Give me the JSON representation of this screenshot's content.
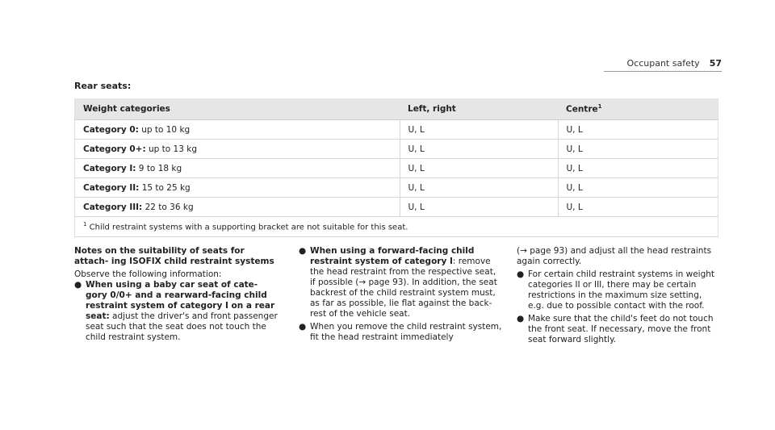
{
  "header": {
    "section": "Occupant safety",
    "page": "57"
  },
  "title": "Rear seats:",
  "table": {
    "headers": [
      "Weight categories",
      "Left, right",
      "Centre"
    ],
    "centre_sup": "1",
    "rows": [
      {
        "category": "Category 0:",
        "weight": "up to 10 kg",
        "left_right": "U, L",
        "centre": "U, L"
      },
      {
        "category": "Category 0+:",
        "weight": "up to 13 kg",
        "left_right": "U, L",
        "centre": "U, L"
      },
      {
        "category": "Category I:",
        "weight": "9 to 18 kg",
        "left_right": "U, L",
        "centre": "U, L"
      },
      {
        "category": "Category II:",
        "weight": "15 to 25 kg",
        "left_right": "U, L",
        "centre": "U, L"
      },
      {
        "category": "Category III:",
        "weight": "22 to 36 kg",
        "left_right": "U, L",
        "centre": "U, L"
      }
    ],
    "footnote_num": "1",
    "footnote": "Child restraint systems with a supporting bracket are not suitable for this seat."
  },
  "notes": {
    "title": "Notes on the suitability of seats for attach- ing ISOFIX child restraint systems",
    "intro": "Observe the following information:",
    "bullets": [
      {
        "bold": "When using a baby car seat of cate- gory 0/0+ and a rearward-facing child restraint system of category I on a rear seat:",
        "text": " adjust the driver's and front passenger seat such that the seat does not touch the child restraint system."
      },
      {
        "bold": "When using a forward-facing child restraint system of category I",
        "text": ": remove the head restraint from the respective seat, if possible (→ page 93). In addition, the seat backrest of the child restraint system must, as far as possible, lie flat against the back- rest of the vehicle seat."
      },
      {
        "bold": "",
        "text": "When you remove the child restraint system, fit the head restraint immediately"
      }
    ],
    "continuation": "(→ page 93) and adjust all the head restraints again correctly.",
    "bullets2": [
      {
        "text": "For certain child restraint systems in weight categories II or III, there may be certain restrictions in the maximum size setting, e.g. due to possible contact with the roof."
      },
      {
        "text": "Make sure that the child's feet do not touch the front seat. If necessary, move the front seat forward slightly."
      }
    ],
    "bullet_char": "●"
  }
}
